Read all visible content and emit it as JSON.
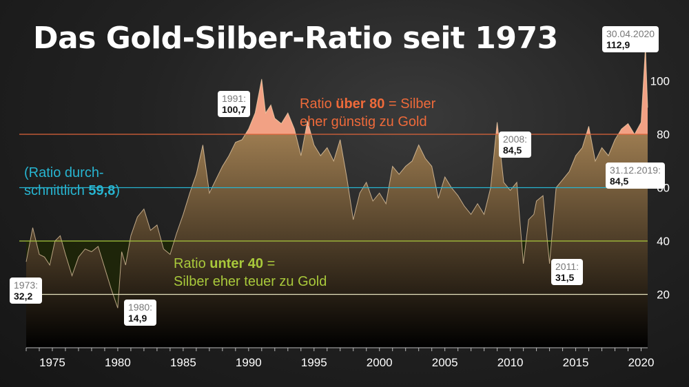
{
  "title": "Das Gold-Silber-Ratio seit 1973",
  "colors": {
    "area_fill_top": "#dcae71",
    "area_fill_bottom": "#000000",
    "above80_fill": "#f2a184",
    "below40_fill": "#1e2608",
    "line_80": "#e0643a",
    "line_60": "#27b5d1",
    "line_40": "#a9c93b",
    "line_20": "#e8e3bf"
  },
  "notes": {
    "above80": {
      "pre": "Ratio ",
      "bold1": "über 80",
      "mid": " = Silber",
      "line2": "eher günstig zu Gold"
    },
    "average": {
      "line1": "(Ratio durch-",
      "pre": "schnittlich ",
      "bold": "59,8",
      "post": ")"
    },
    "below40": {
      "pre": "Ratio ",
      "bold": "unter 40",
      "post": " =",
      "line2": "Silber eher teuer zu Gold"
    }
  },
  "callouts": {
    "c1973": {
      "label": "1973:",
      "value": "32,2"
    },
    "c1980": {
      "label": "1980:",
      "value": "14,9"
    },
    "c1991": {
      "label": "1991:",
      "value": "100,7"
    },
    "c2008": {
      "label": "2008:",
      "value": "84,5"
    },
    "c2011": {
      "label": "2011:",
      "value": "31,5"
    },
    "c2019": {
      "label": "31.12.2019:",
      "value": "84,5"
    },
    "c2020": {
      "label": "30.04.2020",
      "value": "112,9"
    }
  },
  "chart_data": {
    "type": "area",
    "title": "Das Gold-Silber-Ratio seit 1973",
    "xlabel": "",
    "ylabel": "",
    "xlim": [
      1973,
      2020.5
    ],
    "ylim": [
      0,
      120
    ],
    "x_ticks": [
      1975,
      1980,
      1985,
      1990,
      1995,
      2000,
      2005,
      2010,
      2015,
      2020
    ],
    "y_ticks": [
      20,
      40,
      60,
      80,
      100
    ],
    "reference_lines": [
      {
        "value": 80,
        "color": "#e0643a"
      },
      {
        "value": 60,
        "color": "#27b5d1"
      },
      {
        "value": 40,
        "color": "#a9c93b"
      },
      {
        "value": 20,
        "color": "#e8e3bf"
      }
    ],
    "series": [
      {
        "x": [
          1973,
          1973.5,
          1974,
          1974.4,
          1974.8,
          1975.2,
          1975.6,
          1976,
          1976.5,
          1977,
          1977.5,
          1978,
          1978.5,
          1979,
          1979.5,
          1980.0,
          1980.3,
          1980.6,
          1981,
          1981.5,
          1982,
          1982.5,
          1983,
          1983.5,
          1984,
          1984.5,
          1985,
          1985.5,
          1986,
          1986.5,
          1987,
          1987.5,
          1988,
          1988.5,
          1989,
          1989.5,
          1990,
          1990.5,
          1991.0,
          1991.3,
          1991.7,
          1992,
          1992.5,
          1993,
          1993.5,
          1994,
          1994.5,
          1995,
          1995.5,
          1996,
          1996.5,
          1997,
          1997.5,
          1998,
          1998.5,
          1999,
          1999.5,
          2000,
          2000.5,
          2001,
          2001.5,
          2002,
          2002.5,
          2003,
          2003.5,
          2004,
          2004.5,
          2005,
          2005.5,
          2006,
          2006.5,
          2007,
          2007.5,
          2008,
          2008.5,
          2009.0,
          2009.5,
          2010,
          2010.5,
          2011.0,
          2011.4,
          2011.8,
          2012,
          2012.5,
          2013.0,
          2013.5,
          2014,
          2014.5,
          2015,
          2015.5,
          2016,
          2016.5,
          2017,
          2017.5,
          2018,
          2018.5,
          2019,
          2019.5,
          2020.0,
          2020.33,
          2020.5
        ],
        "values": [
          32.2,
          45,
          35,
          34,
          31,
          40,
          42,
          35,
          27,
          34,
          37,
          36,
          38,
          30,
          22,
          14.9,
          36,
          31,
          42,
          49,
          52,
          44,
          46,
          37,
          35,
          43,
          50,
          58,
          65,
          76,
          58,
          63,
          68,
          72,
          77,
          78,
          82,
          88,
          100.7,
          88,
          91,
          86,
          84,
          88,
          82,
          72,
          85,
          76,
          72,
          75,
          70,
          78,
          64,
          48,
          58,
          62,
          55,
          58,
          54,
          68,
          65,
          68,
          70,
          76,
          71,
          68,
          56,
          64,
          60,
          57,
          53,
          50,
          54,
          50,
          60,
          84.5,
          62,
          59,
          62,
          31.5,
          48,
          50,
          55,
          57,
          31.5,
          60,
          63,
          66,
          72,
          75,
          83,
          70,
          75,
          72,
          78,
          82,
          84,
          80,
          84.5,
          112.9,
          90
        ]
      }
    ]
  }
}
